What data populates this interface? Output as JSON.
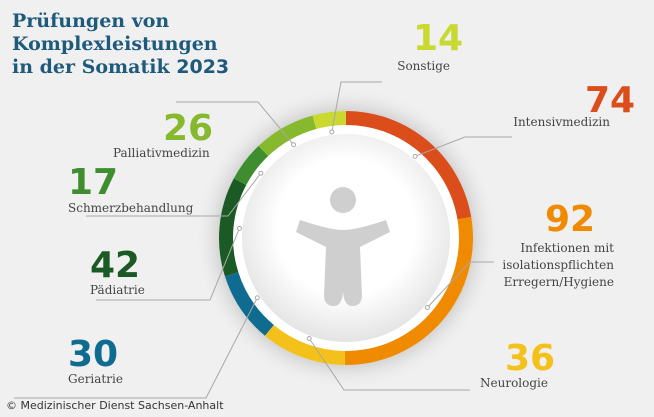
{
  "title": {
    "line1": "Prüfungen von",
    "line2": "Komplexleistungen",
    "line3": "in der Somatik",
    "year": "2023"
  },
  "credit": "© Medizinischer Dienst Sachsen-Anhalt",
  "icon": "person-figure-icon",
  "chart_data": {
    "type": "pie",
    "style": "donut",
    "start": "top, clockwise",
    "slices": [
      {
        "value": 74,
        "label": "Intensivmedizin",
        "color": "#db4e1c"
      },
      {
        "value": 92,
        "label": "Infektionen mit isolationspflichten Erregern/Hygiene",
        "label_lines": [
          "Infektionen mit",
          "isolationspflichten",
          "Erregern/Hygiene"
        ],
        "color": "#f08a00"
      },
      {
        "value": 36,
        "label": "Neurologie",
        "color": "#f4c11a"
      },
      {
        "value": 30,
        "label": "Geriatrie",
        "color": "#0f6b8f"
      },
      {
        "value": 42,
        "label": "Pädiatrie",
        "color": "#1c5a25"
      },
      {
        "value": 17,
        "label": "Schmerzbehandlung",
        "color": "#3e8e2f"
      },
      {
        "value": 26,
        "label": "Palliativmedizin",
        "color": "#86b92e"
      },
      {
        "value": 14,
        "label": "Sonstige",
        "color": "#c9d932"
      }
    ]
  }
}
